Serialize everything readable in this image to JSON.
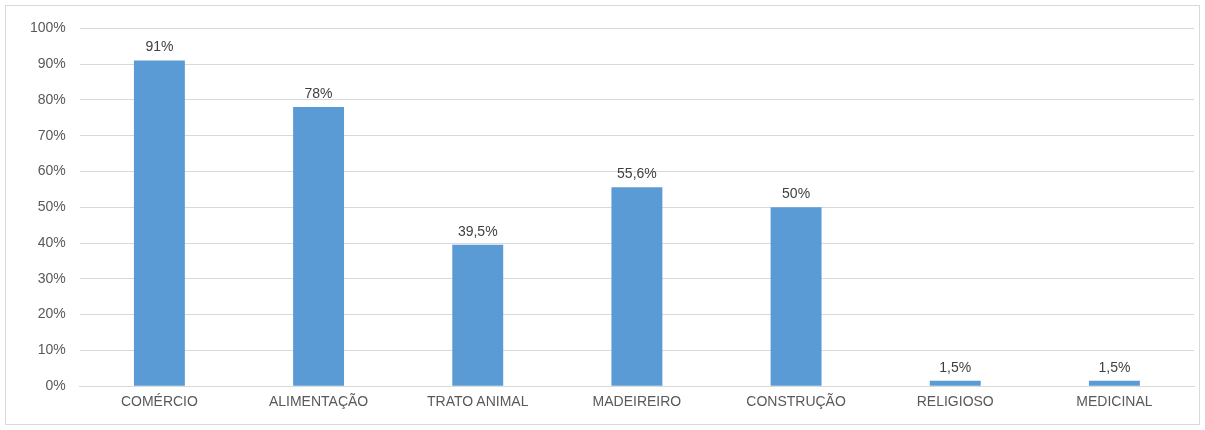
{
  "chart_data": {
    "type": "bar",
    "categories": [
      "COMÉRCIO",
      "ALIMENTAÇÃO",
      "TRATO ANIMAL",
      "MADEIREIRO",
      "CONSTRUÇÃO",
      "RELIGIOSO",
      "MEDICINAL"
    ],
    "values": [
      91,
      78,
      39.5,
      55.6,
      50,
      1.5,
      1.5
    ],
    "value_labels": [
      "91%",
      "78%",
      "39,5%",
      "55,6%",
      "50%",
      "1,5%",
      "1,5%"
    ],
    "color": "#5b9bd5",
    "ylim": [
      0,
      100
    ],
    "yticks": [
      {
        "value": 0,
        "label": "0%"
      },
      {
        "value": 10,
        "label": "10%"
      },
      {
        "value": 20,
        "label": "20%"
      },
      {
        "value": 30,
        "label": "30%"
      },
      {
        "value": 40,
        "label": "40%"
      },
      {
        "value": 50,
        "label": "50%"
      },
      {
        "value": 60,
        "label": "60%"
      },
      {
        "value": 70,
        "label": "70%"
      },
      {
        "value": 80,
        "label": "80%"
      },
      {
        "value": 90,
        "label": "90%"
      },
      {
        "value": 100,
        "label": "100%"
      }
    ],
    "grid": "y",
    "legend": false
  }
}
